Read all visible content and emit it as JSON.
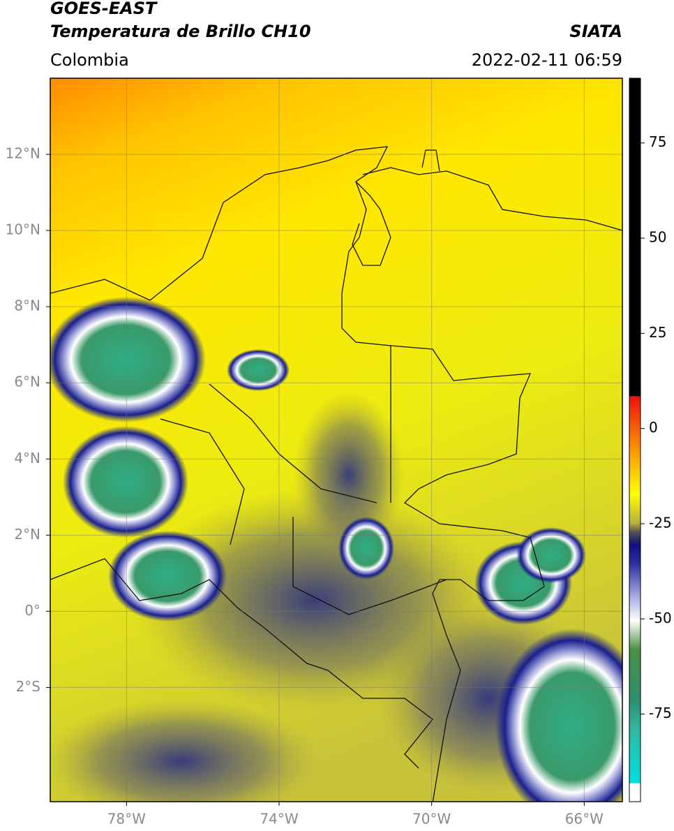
{
  "header": {
    "title": "GOES-EAST",
    "subtitle": "Temperatura de Brillo CH10",
    "source": "SIATA",
    "region": "Colombia",
    "timestamp": "2022-02-11 06:59"
  },
  "map": {
    "xlim": [
      -80,
      -65
    ],
    "ylim": [
      -5,
      14
    ],
    "xticks": [
      {
        "value": -78,
        "label": "78°W"
      },
      {
        "value": -74,
        "label": "74°W"
      },
      {
        "value": -70,
        "label": "70°W"
      },
      {
        "value": -66,
        "label": "66°W"
      }
    ],
    "yticks": [
      {
        "value": 12,
        "label": "12°N"
      },
      {
        "value": 10,
        "label": "10°N"
      },
      {
        "value": 8,
        "label": "8°N"
      },
      {
        "value": 6,
        "label": "6°N"
      },
      {
        "value": 4,
        "label": "4°N"
      },
      {
        "value": 2,
        "label": "2°N"
      },
      {
        "value": 0,
        "label": "0°"
      },
      {
        "value": -2,
        "label": "2°S"
      }
    ],
    "grid": true
  },
  "colorbar": {
    "ylim": [
      -98,
      92
    ],
    "yticks": [
      75,
      50,
      25,
      0,
      -25,
      -50,
      -75
    ]
  }
}
